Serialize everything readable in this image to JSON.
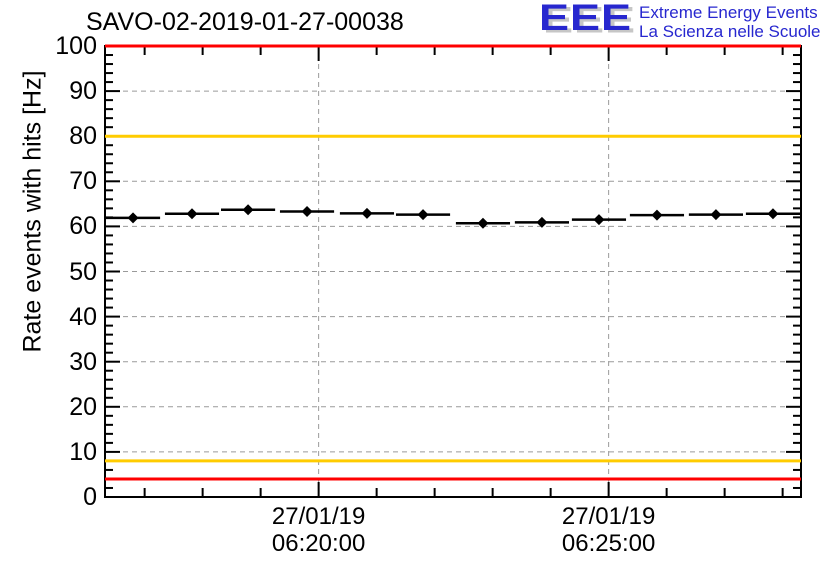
{
  "header": {
    "title": "SAVO-02-2019-01-27-00038",
    "logo": {
      "letters": "EEE",
      "line1": "Extreme Energy Events",
      "line2": "La Scienza nelle Scuole",
      "color": "#2727cf",
      "shadow_color": "#c6c6c6"
    }
  },
  "chart_data": {
    "type": "scatter",
    "title": "SAVO-02-2019-01-27-00038",
    "ylabel": "Rate events with hits [Hz]",
    "xlabel": "",
    "ylim": [
      0,
      100
    ],
    "y_major_step": 10,
    "y_minor_step": 2,
    "y_tick_labels": [
      "0",
      "10",
      "20",
      "30",
      "40",
      "50",
      "60",
      "70",
      "80",
      "90",
      "100"
    ],
    "x_axis": {
      "reference": "seconds relative to 27/01/19 06:20:00",
      "domain_seconds": [
        -221,
        499
      ],
      "minor_step_seconds": 60,
      "major_ticks": [
        {
          "seconds": 0,
          "label_line1": "27/01/19",
          "label_line2": "06:20:00"
        },
        {
          "seconds": 300,
          "label_line1": "27/01/19",
          "label_line2": "06:25:00"
        }
      ]
    },
    "grid": {
      "show": true,
      "style": "dashed",
      "color": "#9a9a9a"
    },
    "frame_color": "#000000",
    "threshold_lines": [
      {
        "value": 100,
        "color": "#ff0000"
      },
      {
        "value": 80,
        "color": "#ffcc00"
      },
      {
        "value": 8,
        "color": "#ffcc00"
      },
      {
        "value": 4,
        "color": "#ff0000"
      }
    ],
    "series": [
      {
        "name": "rate-events-with-hits",
        "marker": "filled-diamond",
        "color": "#000000",
        "bin_halfwidth_seconds": 28,
        "points": [
          {
            "time": "06:16:48",
            "seconds": -192,
            "rate_hz": 61.9
          },
          {
            "time": "06:17:49",
            "seconds": -131,
            "rate_hz": 62.8
          },
          {
            "time": "06:18:47",
            "seconds": -73,
            "rate_hz": 63.7
          },
          {
            "time": "06:19:48",
            "seconds": -12,
            "rate_hz": 63.3
          },
          {
            "time": "06:20:50",
            "seconds": 50,
            "rate_hz": 62.9
          },
          {
            "time": "06:21:48",
            "seconds": 108,
            "rate_hz": 62.6
          },
          {
            "time": "06:22:50",
            "seconds": 170,
            "rate_hz": 60.7
          },
          {
            "time": "06:23:51",
            "seconds": 231,
            "rate_hz": 60.9
          },
          {
            "time": "06:24:50",
            "seconds": 290,
            "rate_hz": 61.5
          },
          {
            "time": "06:25:50",
            "seconds": 350,
            "rate_hz": 62.5
          },
          {
            "time": "06:26:51",
            "seconds": 411,
            "rate_hz": 62.6
          },
          {
            "time": "06:27:50",
            "seconds": 470,
            "rate_hz": 62.8
          }
        ]
      }
    ]
  }
}
